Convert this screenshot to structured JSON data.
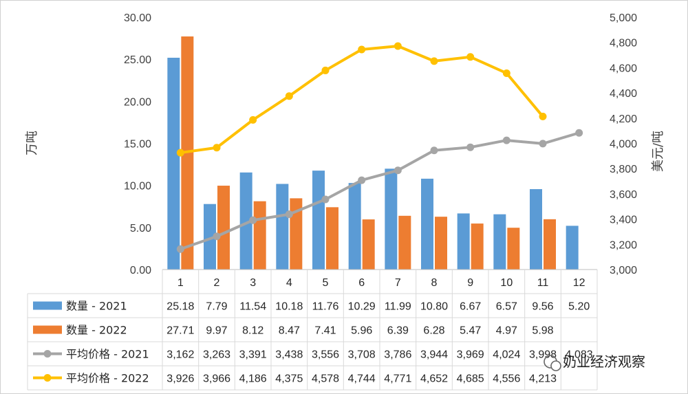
{
  "chart_data": {
    "type": "bar+line",
    "categories": [
      "1",
      "2",
      "3",
      "4",
      "5",
      "6",
      "7",
      "8",
      "9",
      "10",
      "11",
      "12"
    ],
    "ylabel_left": "万吨",
    "ylabel_right": "美元/吨",
    "ylim_left": [
      0,
      30
    ],
    "ylim_right": [
      3000,
      5000
    ],
    "left_ticks": [
      "0.00",
      "5.00",
      "10.00",
      "15.00",
      "20.00",
      "25.00",
      "30.00"
    ],
    "right_ticks": [
      "3,000",
      "3,200",
      "3,400",
      "3,600",
      "3,800",
      "4,000",
      "4,200",
      "4,400",
      "4,600",
      "4,800",
      "5,000"
    ],
    "series": [
      {
        "name": "数量 - 2021",
        "type": "bar",
        "axis": "left",
        "color": "#5b9bd5",
        "values": [
          25.18,
          7.79,
          11.54,
          10.18,
          11.76,
          10.29,
          11.99,
          10.8,
          6.67,
          6.57,
          9.56,
          5.2
        ],
        "labels": [
          "25.18",
          "7.79",
          "11.54",
          "10.18",
          "11.76",
          "10.29",
          "11.99",
          "10.80",
          "6.67",
          "6.57",
          "9.56",
          "5.20"
        ]
      },
      {
        "name": "数量 - 2022",
        "type": "bar",
        "axis": "left",
        "color": "#ed7d31",
        "values": [
          27.71,
          9.97,
          8.12,
          8.47,
          7.41,
          5.96,
          6.39,
          6.28,
          5.47,
          4.97,
          5.98,
          null
        ],
        "labels": [
          "27.71",
          "9.97",
          "8.12",
          "8.47",
          "7.41",
          "5.96",
          "6.39",
          "6.28",
          "5.47",
          "4.97",
          "5.98",
          ""
        ]
      },
      {
        "name": "平均价格 - 2021",
        "type": "line",
        "axis": "right",
        "color": "#a5a5a5",
        "values": [
          3162,
          3263,
          3391,
          3438,
          3556,
          3708,
          3786,
          3944,
          3969,
          4024,
          3998,
          4083
        ],
        "labels": [
          "3,162",
          "3,263",
          "3,391",
          "3,438",
          "3,556",
          "3,708",
          "3,786",
          "3,944",
          "3,969",
          "4,024",
          "3,998",
          "4,083"
        ]
      },
      {
        "name": "平均价格 - 2022",
        "type": "line",
        "axis": "right",
        "color": "#ffc000",
        "values": [
          3926,
          3966,
          4186,
          4375,
          4578,
          4744,
          4771,
          4652,
          4685,
          4556,
          4213,
          null
        ],
        "labels": [
          "3,926",
          "3,966",
          "4,186",
          "4,375",
          "4,578",
          "4,744",
          "4,771",
          "4,652",
          "4,685",
          "4,556",
          "4,213",
          ""
        ]
      }
    ]
  },
  "watermark": "奶业经济观察"
}
